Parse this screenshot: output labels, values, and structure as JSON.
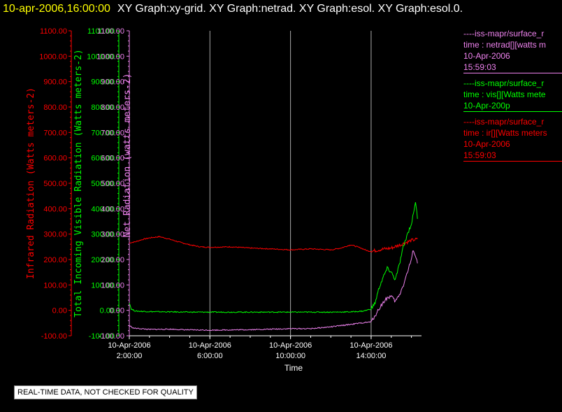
{
  "header": {
    "time_label": "10-apr-2006,16:00:00",
    "graphs_label": "XY Graph:xy-grid.  XY Graph:netrad.  XY Graph:esol.  XY Graph:esol.0."
  },
  "notice": "REAL-TIME DATA, NOT CHECKED FOR QUALITY",
  "legend": [
    {
      "lines": [
        "----iss-mapr/surface_r",
        "time : netrad[][watts m",
        "10-Apr-2006",
        "15:59:03"
      ],
      "color": "#ee82ee"
    },
    {
      "lines": [
        "----iss-mapr/surface_r",
        "time : vis[][Watts mete",
        "10-Apr-200p"
      ],
      "color": "#00ff00"
    },
    {
      "lines": [
        "----iss-mapr/surface_r",
        "time : ir[][Watts meters",
        "10-Apr-2006",
        "15:59:03"
      ],
      "color": "#ff0000"
    }
  ],
  "chart_data": {
    "type": "line",
    "xlabel": "Time",
    "x_ticks": [
      {
        "hour": 2,
        "date": "10-Apr-2006",
        "time": "2:00:00"
      },
      {
        "hour": 6,
        "date": "10-Apr-2006",
        "time": "6:00:00"
      },
      {
        "hour": 10,
        "date": "10-Apr-2006",
        "time": "10:00:00"
      },
      {
        "hour": 14,
        "date": "10-Apr-2006",
        "time": "14:00:00"
      }
    ],
    "xlim_hours": [
      2,
      16.5
    ],
    "grid_x": true,
    "axes": [
      {
        "id": "ir",
        "label": "Infrared Radiation (Watts meters-2)",
        "color": "#ff0000",
        "ylim": [
          -100,
          1100
        ]
      },
      {
        "id": "vis",
        "label": "Total Incoming Visible Radiation (Watts meters-2)",
        "color": "#00ff00",
        "ylim": [
          -100,
          1100
        ]
      },
      {
        "id": "net",
        "label": "Net Radiation (watts meters-2)",
        "color": "#ee82ee",
        "ylim": [
          -100,
          1100
        ]
      }
    ],
    "y_ticks": [
      "-100.00",
      "0.00",
      "100.00",
      "200.00",
      "300.00",
      "400.00",
      "500.00",
      "600.00",
      "700.00",
      "800.00",
      "900.00",
      "1000.00",
      "1100.00"
    ],
    "series": [
      {
        "axis": "ir",
        "color": "#ff0000",
        "points": [
          [
            2,
            265
          ],
          [
            2.3,
            270
          ],
          [
            2.7,
            280
          ],
          [
            3,
            285
          ],
          [
            3.5,
            290
          ],
          [
            4,
            280
          ],
          [
            4.5,
            268
          ],
          [
            5,
            258
          ],
          [
            5.5,
            250
          ],
          [
            6,
            248
          ],
          [
            7,
            250
          ],
          [
            8,
            245
          ],
          [
            9,
            242
          ],
          [
            10,
            238
          ],
          [
            11,
            242
          ],
          [
            12,
            238
          ],
          [
            12.5,
            245
          ],
          [
            13,
            258
          ],
          [
            13.5,
            245
          ],
          [
            13.8,
            235
          ],
          [
            14,
            232
          ],
          [
            14.5,
            240
          ],
          [
            15,
            245
          ],
          [
            15.5,
            260
          ],
          [
            16,
            275
          ],
          [
            16.3,
            280
          ]
        ]
      },
      {
        "axis": "vis",
        "color": "#00ff00",
        "points": [
          [
            2,
            30
          ],
          [
            2.1,
            5
          ],
          [
            2.3,
            -3
          ],
          [
            3,
            -5
          ],
          [
            4,
            -6
          ],
          [
            5,
            -7
          ],
          [
            6,
            -7
          ],
          [
            7,
            -7
          ],
          [
            8,
            -7
          ],
          [
            9,
            -7
          ],
          [
            10,
            -7
          ],
          [
            11,
            -7
          ],
          [
            12,
            -7
          ],
          [
            13,
            -6
          ],
          [
            13.6,
            -3
          ],
          [
            14,
            5
          ],
          [
            14.2,
            30
          ],
          [
            14.4,
            90
          ],
          [
            14.6,
            130
          ],
          [
            14.8,
            165
          ],
          [
            15,
            150
          ],
          [
            15.2,
            120
          ],
          [
            15.4,
            180
          ],
          [
            15.6,
            250
          ],
          [
            15.8,
            300
          ],
          [
            16,
            340
          ],
          [
            16.1,
            380
          ],
          [
            16.2,
            430
          ],
          [
            16.3,
            360
          ]
        ]
      },
      {
        "axis": "net",
        "color": "#ee82ee",
        "points": [
          [
            2,
            -60
          ],
          [
            2.2,
            -70
          ],
          [
            3,
            -75
          ],
          [
            4,
            -74
          ],
          [
            5,
            -77
          ],
          [
            6,
            -78
          ],
          [
            7,
            -77
          ],
          [
            8,
            -76
          ],
          [
            9,
            -74
          ],
          [
            10,
            -72
          ],
          [
            11,
            -72
          ],
          [
            12,
            -65
          ],
          [
            13,
            -55
          ],
          [
            13.5,
            -50
          ],
          [
            14,
            -45
          ],
          [
            14.2,
            -20
          ],
          [
            14.5,
            20
          ],
          [
            14.8,
            50
          ],
          [
            15,
            55
          ],
          [
            15.2,
            35
          ],
          [
            15.4,
            60
          ],
          [
            15.6,
            100
          ],
          [
            15.8,
            150
          ],
          [
            16,
            200
          ],
          [
            16.1,
            240
          ],
          [
            16.3,
            185
          ]
        ]
      }
    ]
  }
}
